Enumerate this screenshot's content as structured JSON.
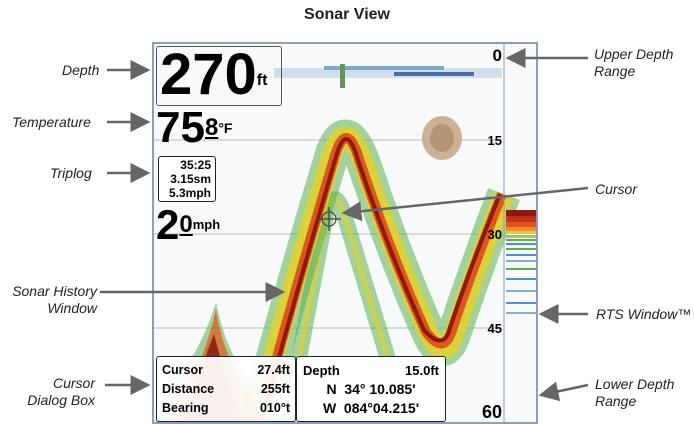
{
  "title": "Sonar View",
  "callouts": {
    "depth": "Depth",
    "temperature": "Temperature",
    "triplog": "Triplog",
    "sonar_history": [
      "Sonar History",
      "Window"
    ],
    "cursor_dialog": [
      "Cursor",
      "Dialog Box"
    ],
    "upper_depth": [
      "Upper Depth",
      "Range"
    ],
    "cursor": "Cursor",
    "rts": "RTS Window™",
    "lower_depth": [
      "Lower Depth",
      "Range"
    ]
  },
  "readouts": {
    "depth_value": "270",
    "depth_unit": "ft",
    "temp_whole": "75",
    "temp_decimal": "8",
    "temp_unit": "°F",
    "triplog": [
      "35:25",
      "3.15sm",
      "5.3mph"
    ],
    "speed_value": "2",
    "speed_decimal": "0",
    "speed_unit": "mph"
  },
  "scale": [
    "0",
    "15",
    "30",
    "45",
    "60"
  ],
  "cursor_dialog": {
    "left": [
      {
        "label": "Cursor",
        "value": "27.4ft"
      },
      {
        "label": "Distance",
        "value": "255ft"
      },
      {
        "label": "Bearing",
        "value": "010°t"
      }
    ],
    "depth_label": "Depth",
    "depth_value": "15.0ft",
    "lat": "N  34° 10.085'",
    "lon": "W  084°04.215'"
  },
  "colors": {
    "frame": "#8aa0b5",
    "echo_strong": "#8b1a0a",
    "echo_mid": "#e0551a",
    "echo_weak": "#d9d23a",
    "echo_faint": "#5fb04a"
  }
}
